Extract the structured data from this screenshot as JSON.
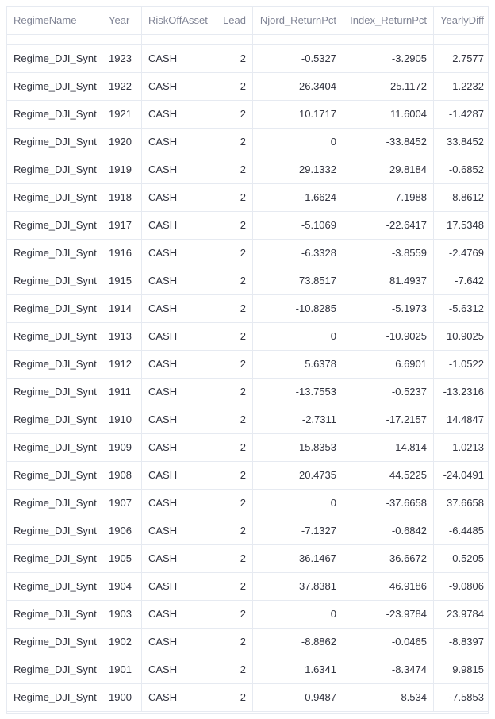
{
  "table": {
    "columns": [
      "RegimeName",
      "Year",
      "RiskOffAsset",
      "Lead",
      "Njord_ReturnPct",
      "Index_ReturnPct",
      "YearlyDiff"
    ],
    "rows": [
      [
        "Regime_DJI_Synt",
        "1923",
        "CASH",
        "2",
        "-0.5327",
        "-3.2905",
        "2.7577"
      ],
      [
        "Regime_DJI_Synt",
        "1922",
        "CASH",
        "2",
        "26.3404",
        "25.1172",
        "1.2232"
      ],
      [
        "Regime_DJI_Synt",
        "1921",
        "CASH",
        "2",
        "10.1717",
        "11.6004",
        "-1.4287"
      ],
      [
        "Regime_DJI_Synt",
        "1920",
        "CASH",
        "2",
        "0",
        "-33.8452",
        "33.8452"
      ],
      [
        "Regime_DJI_Synt",
        "1919",
        "CASH",
        "2",
        "29.1332",
        "29.8184",
        "-0.6852"
      ],
      [
        "Regime_DJI_Synt",
        "1918",
        "CASH",
        "2",
        "-1.6624",
        "7.1988",
        "-8.8612"
      ],
      [
        "Regime_DJI_Synt",
        "1917",
        "CASH",
        "2",
        "-5.1069",
        "-22.6417",
        "17.5348"
      ],
      [
        "Regime_DJI_Synt",
        "1916",
        "CASH",
        "2",
        "-6.3328",
        "-3.8559",
        "-2.4769"
      ],
      [
        "Regime_DJI_Synt",
        "1915",
        "CASH",
        "2",
        "73.8517",
        "81.4937",
        "-7.642"
      ],
      [
        "Regime_DJI_Synt",
        "1914",
        "CASH",
        "2",
        "-10.8285",
        "-5.1973",
        "-5.6312"
      ],
      [
        "Regime_DJI_Synt",
        "1913",
        "CASH",
        "2",
        "0",
        "-10.9025",
        "10.9025"
      ],
      [
        "Regime_DJI_Synt",
        "1912",
        "CASH",
        "2",
        "5.6378",
        "6.6901",
        "-1.0522"
      ],
      [
        "Regime_DJI_Synt",
        "1911",
        "CASH",
        "2",
        "-13.7553",
        "-0.5237",
        "-13.2316"
      ],
      [
        "Regime_DJI_Synt",
        "1910",
        "CASH",
        "2",
        "-2.7311",
        "-17.2157",
        "14.4847"
      ],
      [
        "Regime_DJI_Synt",
        "1909",
        "CASH",
        "2",
        "15.8353",
        "14.814",
        "1.0213"
      ],
      [
        "Regime_DJI_Synt",
        "1908",
        "CASH",
        "2",
        "20.4735",
        "44.5225",
        "-24.0491"
      ],
      [
        "Regime_DJI_Synt",
        "1907",
        "CASH",
        "2",
        "0",
        "-37.6658",
        "37.6658"
      ],
      [
        "Regime_DJI_Synt",
        "1906",
        "CASH",
        "2",
        "-7.1327",
        "-0.6842",
        "-6.4485"
      ],
      [
        "Regime_DJI_Synt",
        "1905",
        "CASH",
        "2",
        "36.1467",
        "36.6672",
        "-0.5205"
      ],
      [
        "Regime_DJI_Synt",
        "1904",
        "CASH",
        "2",
        "37.8381",
        "46.9186",
        "-9.0806"
      ],
      [
        "Regime_DJI_Synt",
        "1903",
        "CASH",
        "2",
        "0",
        "-23.9784",
        "23.9784"
      ],
      [
        "Regime_DJI_Synt",
        "1902",
        "CASH",
        "2",
        "-8.8862",
        "-0.0465",
        "-8.8397"
      ],
      [
        "Regime_DJI_Synt",
        "1901",
        "CASH",
        "2",
        "1.6341",
        "-8.3474",
        "9.9815"
      ],
      [
        "Regime_DJI_Synt",
        "1900",
        "CASH",
        "2",
        "0.9487",
        "8.534",
        "-7.5853"
      ]
    ]
  }
}
